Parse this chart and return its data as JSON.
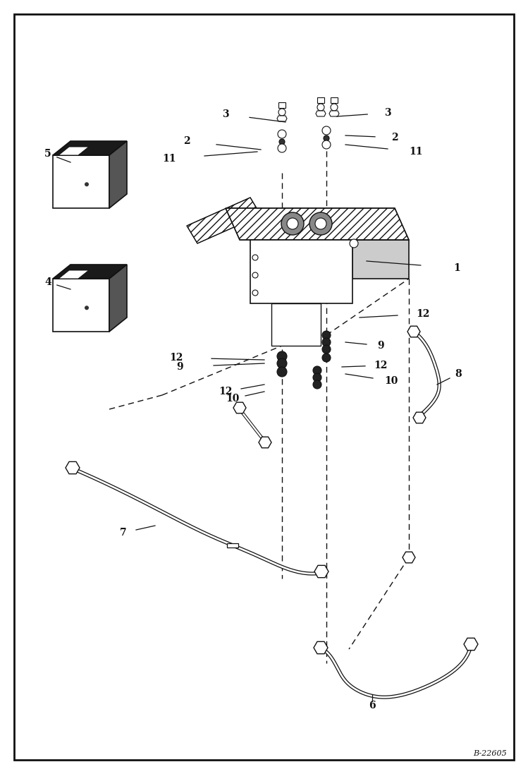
{
  "bg_color": "#ffffff",
  "border_color": "#111111",
  "line_color": "#111111",
  "fig_width": 7.49,
  "fig_height": 10.97,
  "watermark": "B-22605"
}
